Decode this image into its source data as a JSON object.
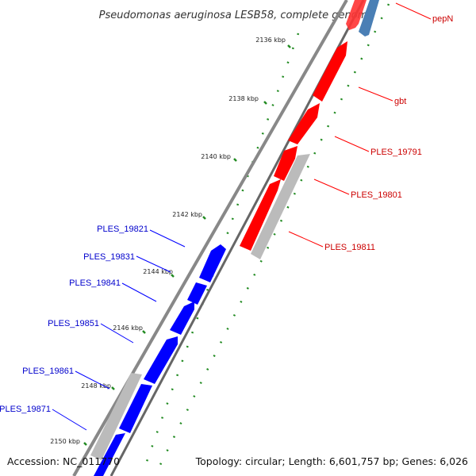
{
  "title": "Pseudomonas aeruginosa LESB58, complete genome",
  "footer": {
    "accession": "Accession: NC_011770",
    "topology": "Topology: circular; Length: 6,601,757 bp; Genes: 6,026"
  },
  "colors": {
    "forward_gene": "#ff0000",
    "reverse_gene": "#0000ff",
    "pseudo_gene": "#c0c0c0",
    "blue_gene": "#4a7fb5",
    "backbone": "#777777",
    "gc_marker": "#228b22",
    "forward_label": "#cc0000",
    "reverse_label": "#0000cc"
  },
  "ticks": [
    {
      "label": "2136 kbp",
      "kbp": 2136
    },
    {
      "label": "2138 kbp",
      "kbp": 2138
    },
    {
      "label": "2140 kbp",
      "kbp": 2140
    },
    {
      "label": "2142 kbp",
      "kbp": 2142
    },
    {
      "label": "2144 kbp",
      "kbp": 2144
    },
    {
      "label": "2146 kbp",
      "kbp": 2146
    },
    {
      "label": "2148 kbp",
      "kbp": 2148
    },
    {
      "label": "2150 kbp",
      "kbp": 2150
    }
  ],
  "genes_forward": [
    {
      "name": "pepN",
      "type": "red"
    },
    {
      "name": "gbt",
      "type": "red"
    },
    {
      "name": "PLES_19791",
      "type": "red"
    },
    {
      "name": "PLES_19801",
      "type": "red"
    },
    {
      "name": "PLES_19811",
      "type": "gray"
    }
  ],
  "genes_reverse": [
    {
      "name": "PLES_19821",
      "type": "blue"
    },
    {
      "name": "PLES_19831",
      "type": "blue"
    },
    {
      "name": "PLES_19841",
      "type": "blue"
    },
    {
      "name": "PLES_19851",
      "type": "blue"
    },
    {
      "name": "PLES_19861",
      "type": "gray"
    },
    {
      "name": "PLES_19871",
      "type": "blue"
    }
  ]
}
